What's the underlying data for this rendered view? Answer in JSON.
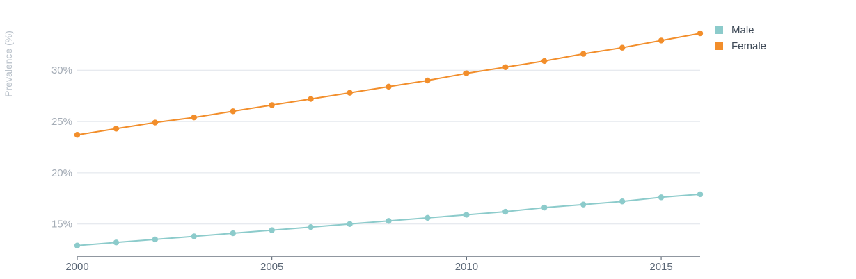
{
  "chart_data": {
    "type": "line",
    "ylabel": "Prevalence (%)",
    "ylim": [
      11.8,
      35.5
    ],
    "xlim": [
      2000,
      2016
    ],
    "y_ticks": [
      {
        "value": 15,
        "label": "15%"
      },
      {
        "value": 20,
        "label": "20%"
      },
      {
        "value": 25,
        "label": "25%"
      },
      {
        "value": 30,
        "label": "30%"
      }
    ],
    "x_ticks": [
      {
        "value": 2000,
        "label": "2000"
      },
      {
        "value": 2005,
        "label": "2005"
      },
      {
        "value": 2010,
        "label": "2010"
      },
      {
        "value": 2015,
        "label": "2015"
      }
    ],
    "x": [
      2000,
      2001,
      2002,
      2003,
      2004,
      2005,
      2006,
      2007,
      2008,
      2009,
      2010,
      2011,
      2012,
      2013,
      2014,
      2015,
      2016
    ],
    "series": [
      {
        "name": "Male",
        "color": "#8ccbcb",
        "values": [
          12.9,
          13.2,
          13.5,
          13.8,
          14.1,
          14.4,
          14.7,
          15.0,
          15.3,
          15.6,
          15.9,
          16.2,
          16.6,
          16.9,
          17.2,
          17.6,
          17.9
        ]
      },
      {
        "name": "Female",
        "color": "#f28e2b",
        "values": [
          23.7,
          24.3,
          24.9,
          25.4,
          26.0,
          26.6,
          27.2,
          27.8,
          28.4,
          29.0,
          29.7,
          30.3,
          30.9,
          31.6,
          32.2,
          32.9,
          33.6
        ]
      }
    ],
    "grid": true,
    "legend_position": "top-right"
  }
}
